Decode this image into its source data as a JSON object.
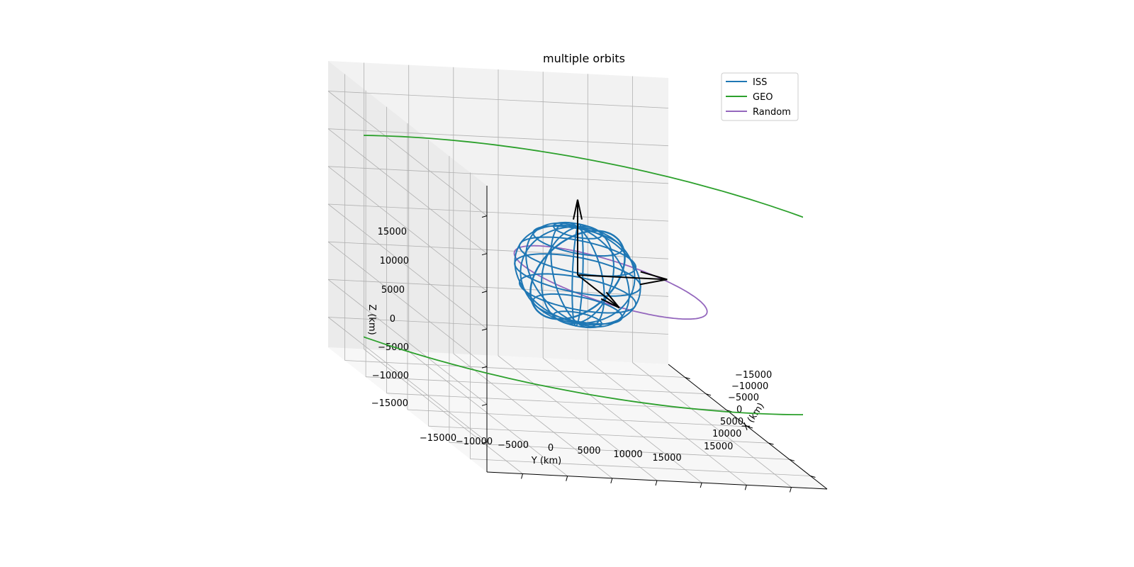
{
  "chart_data": {
    "type": "line",
    "title": "multiple orbits",
    "xlabel": "X (km)",
    "ylabel": "Y (km)",
    "zlabel": "Z (km)",
    "x_ticks": [
      "−15000",
      "−10000",
      "−5000",
      "0",
      "5000",
      "10000",
      "15000"
    ],
    "y_ticks": [
      "−15000",
      "−10000",
      "−5000",
      "0",
      "5000",
      "10000",
      "15000"
    ],
    "z_ticks": [
      "−15000",
      "−10000",
      "−5000",
      "0",
      "5000",
      "10000",
      "15000"
    ],
    "xlim": [
      -19000,
      19000
    ],
    "ylim": [
      -19000,
      19000
    ],
    "zlim": [
      -19000,
      19000
    ],
    "legend_position": "top-right",
    "grid": true,
    "series": [
      {
        "name": "ISS",
        "color": "#1f77b4",
        "kind": "earth-wireframe-and-leo-orbit",
        "radius_km": 6378,
        "orbit_radius_km": 6780
      },
      {
        "name": "GEO",
        "color": "#2ca02c",
        "kind": "circular-orbit",
        "radius_km": 42164
      },
      {
        "name": "Random",
        "color": "#9467bd",
        "kind": "elliptical-orbit",
        "perigee_km": 6800,
        "apogee_km": 14500
      }
    ],
    "vectors": [
      {
        "axis": "x",
        "length_km": 10000,
        "color": "#000000"
      },
      {
        "axis": "y",
        "length_km": 10000,
        "color": "#000000"
      },
      {
        "axis": "z",
        "length_km": 10000,
        "color": "#000000"
      }
    ]
  }
}
